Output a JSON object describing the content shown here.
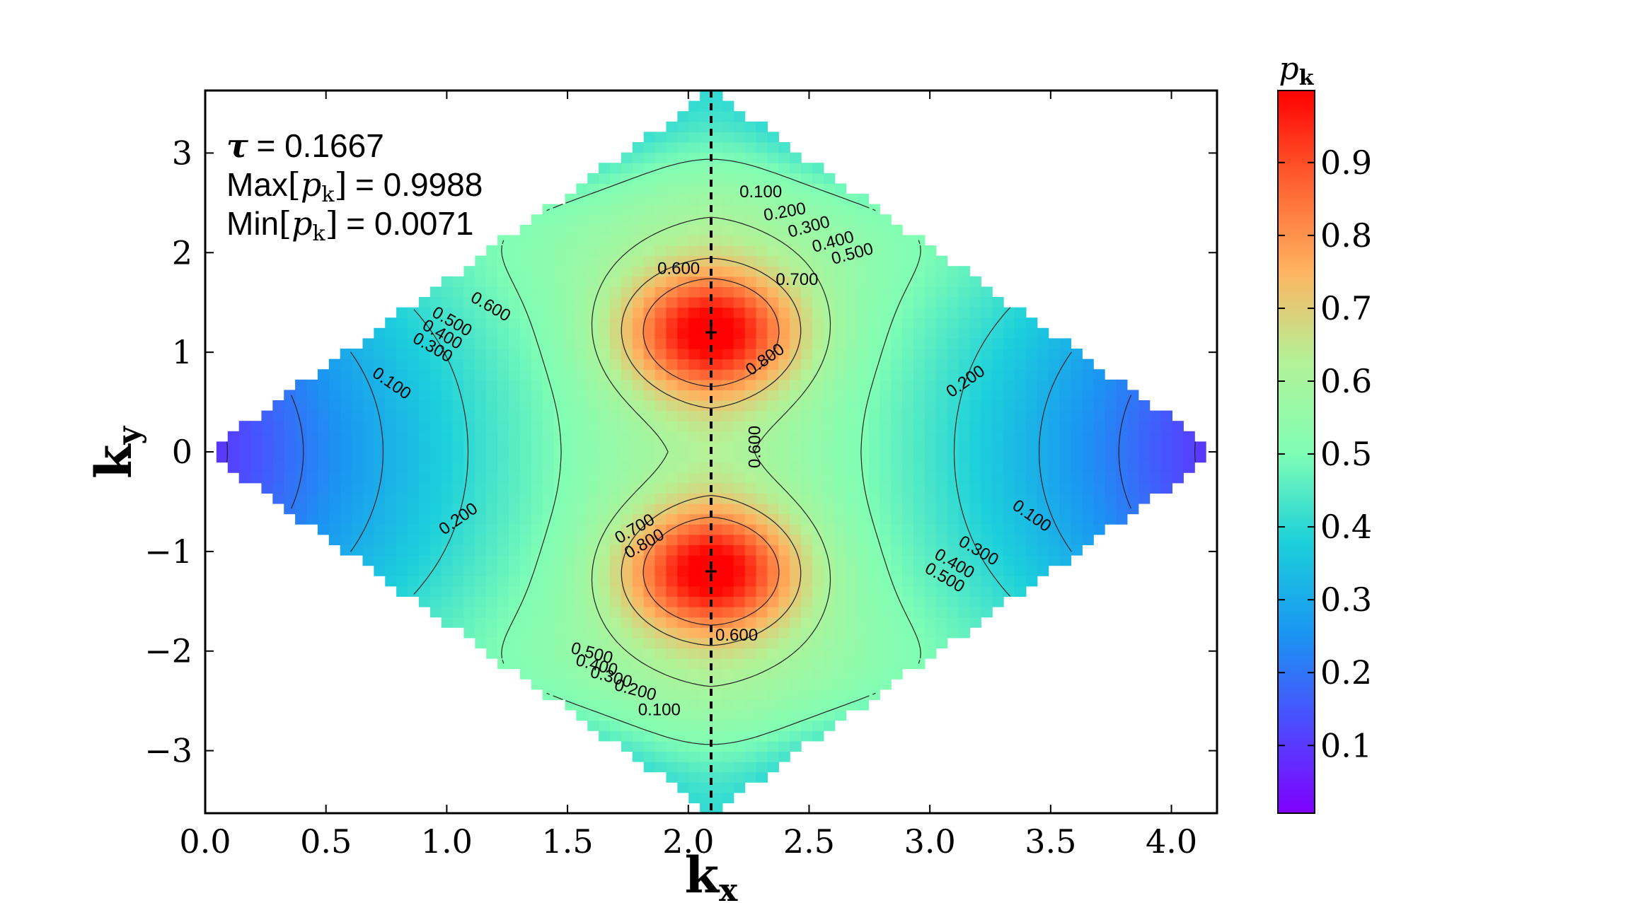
{
  "chart_data": {
    "type": "heatmap",
    "title": "",
    "xlabel": "k",
    "xlabel_sub": "x",
    "ylabel": "k",
    "ylabel_sub": "y",
    "xlim": [
      0,
      4.18879
    ],
    "ylim": [
      -3.6276,
      3.6276
    ],
    "x_ticks": [
      0.0,
      0.5,
      1.0,
      1.5,
      2.0,
      2.5,
      3.0,
      3.5,
      4.0
    ],
    "x_tick_labels": [
      "0.0",
      "0.5",
      "1.0",
      "1.5",
      "2.0",
      "2.5",
      "3.0",
      "3.5",
      "4.0"
    ],
    "y_ticks": [
      3,
      2,
      1,
      0,
      -1,
      -2,
      -3
    ],
    "y_tick_labels": [
      "3",
      "2",
      "1",
      "0",
      "−1",
      "−2",
      "−3"
    ],
    "domain_region": {
      "shape": "rhombus",
      "vertices": [
        [
          0,
          0
        ],
        [
          2.0944,
          3.6276
        ],
        [
          4.1888,
          0
        ],
        [
          2.0944,
          -3.6276
        ]
      ]
    },
    "colormap": "rainbow",
    "colorbar": {
      "label": "p",
      "label_sub": "k",
      "range": [
        0.0071,
        0.9988
      ],
      "ticks": [
        0.1,
        0.2,
        0.3,
        0.4,
        0.5,
        0.6,
        0.7,
        0.8,
        0.9
      ],
      "tick_labels": [
        "0.1",
        "0.2",
        "0.3",
        "0.4",
        "0.5",
        "0.6",
        "0.7",
        "0.8",
        "0.9"
      ]
    },
    "annotations": {
      "tau_symbol": "τ",
      "tau_value": "= 0.1667",
      "max_prefix": "Max",
      "max_value": "= 0.9988",
      "min_prefix": "Min",
      "min_value": "= 0.0071",
      "p_symbol": "p",
      "p_sub": "k"
    },
    "maxima_points": [
      [
        2.0944,
        1.2
      ],
      [
        2.0944,
        -1.2
      ]
    ],
    "dashed_line_x": 2.0944,
    "contour_levels": [
      0.1,
      0.2,
      0.3,
      0.4,
      0.5,
      0.6,
      0.7,
      0.8
    ],
    "contour_labels": [
      {
        "text": "0.100",
        "x": 2.3,
        "y": 2.6,
        "rot": 0
      },
      {
        "text": "0.200",
        "x": 2.4,
        "y": 2.4,
        "rot": -10
      },
      {
        "text": "0.300",
        "x": 2.5,
        "y": 2.25,
        "rot": -15
      },
      {
        "text": "0.400",
        "x": 2.6,
        "y": 2.1,
        "rot": -15
      },
      {
        "text": "0.500",
        "x": 2.68,
        "y": 1.98,
        "rot": -15
      },
      {
        "text": "0.600",
        "x": 1.96,
        "y": 1.83,
        "rot": 0
      },
      {
        "text": "0.700",
        "x": 2.45,
        "y": 1.72,
        "rot": 0
      },
      {
        "text": "0.800",
        "x": 2.32,
        "y": 0.92,
        "rot": -35
      },
      {
        "text": "0.600",
        "x": 2.28,
        "y": 0.05,
        "rot": -90
      },
      {
        "text": "0.600",
        "x": 1.18,
        "y": 1.45,
        "rot": 30
      },
      {
        "text": "0.500",
        "x": 1.02,
        "y": 1.3,
        "rot": 30
      },
      {
        "text": "0.400",
        "x": 0.98,
        "y": 1.17,
        "rot": 30
      },
      {
        "text": "0.300",
        "x": 0.94,
        "y": 1.04,
        "rot": 30
      },
      {
        "text": "0.100",
        "x": 0.77,
        "y": 0.68,
        "rot": 35
      },
      {
        "text": "0.200",
        "x": 1.05,
        "y": -0.68,
        "rot": -35
      },
      {
        "text": "0.700",
        "x": 1.78,
        "y": -0.78,
        "rot": -30
      },
      {
        "text": "0.800",
        "x": 1.82,
        "y": -0.93,
        "rot": -30
      },
      {
        "text": "0.200",
        "x": 3.15,
        "y": 0.7,
        "rot": -35
      },
      {
        "text": "0.100",
        "x": 3.42,
        "y": -0.65,
        "rot": 35
      },
      {
        "text": "0.300",
        "x": 3.2,
        "y": -1.0,
        "rot": 30
      },
      {
        "text": "0.400",
        "x": 3.1,
        "y": -1.13,
        "rot": 30
      },
      {
        "text": "0.500",
        "x": 3.06,
        "y": -1.27,
        "rot": 30
      },
      {
        "text": "0.600",
        "x": 2.2,
        "y": -1.85,
        "rot": 0
      },
      {
        "text": "0.500",
        "x": 1.6,
        "y": -2.03,
        "rot": 15
      },
      {
        "text": "0.400",
        "x": 1.62,
        "y": -2.15,
        "rot": 15
      },
      {
        "text": "0.300",
        "x": 1.68,
        "y": -2.27,
        "rot": 15
      },
      {
        "text": "0.200",
        "x": 1.78,
        "y": -2.4,
        "rot": 15
      },
      {
        "text": "0.100",
        "x": 1.88,
        "y": -2.6,
        "rot": 0
      }
    ]
  }
}
